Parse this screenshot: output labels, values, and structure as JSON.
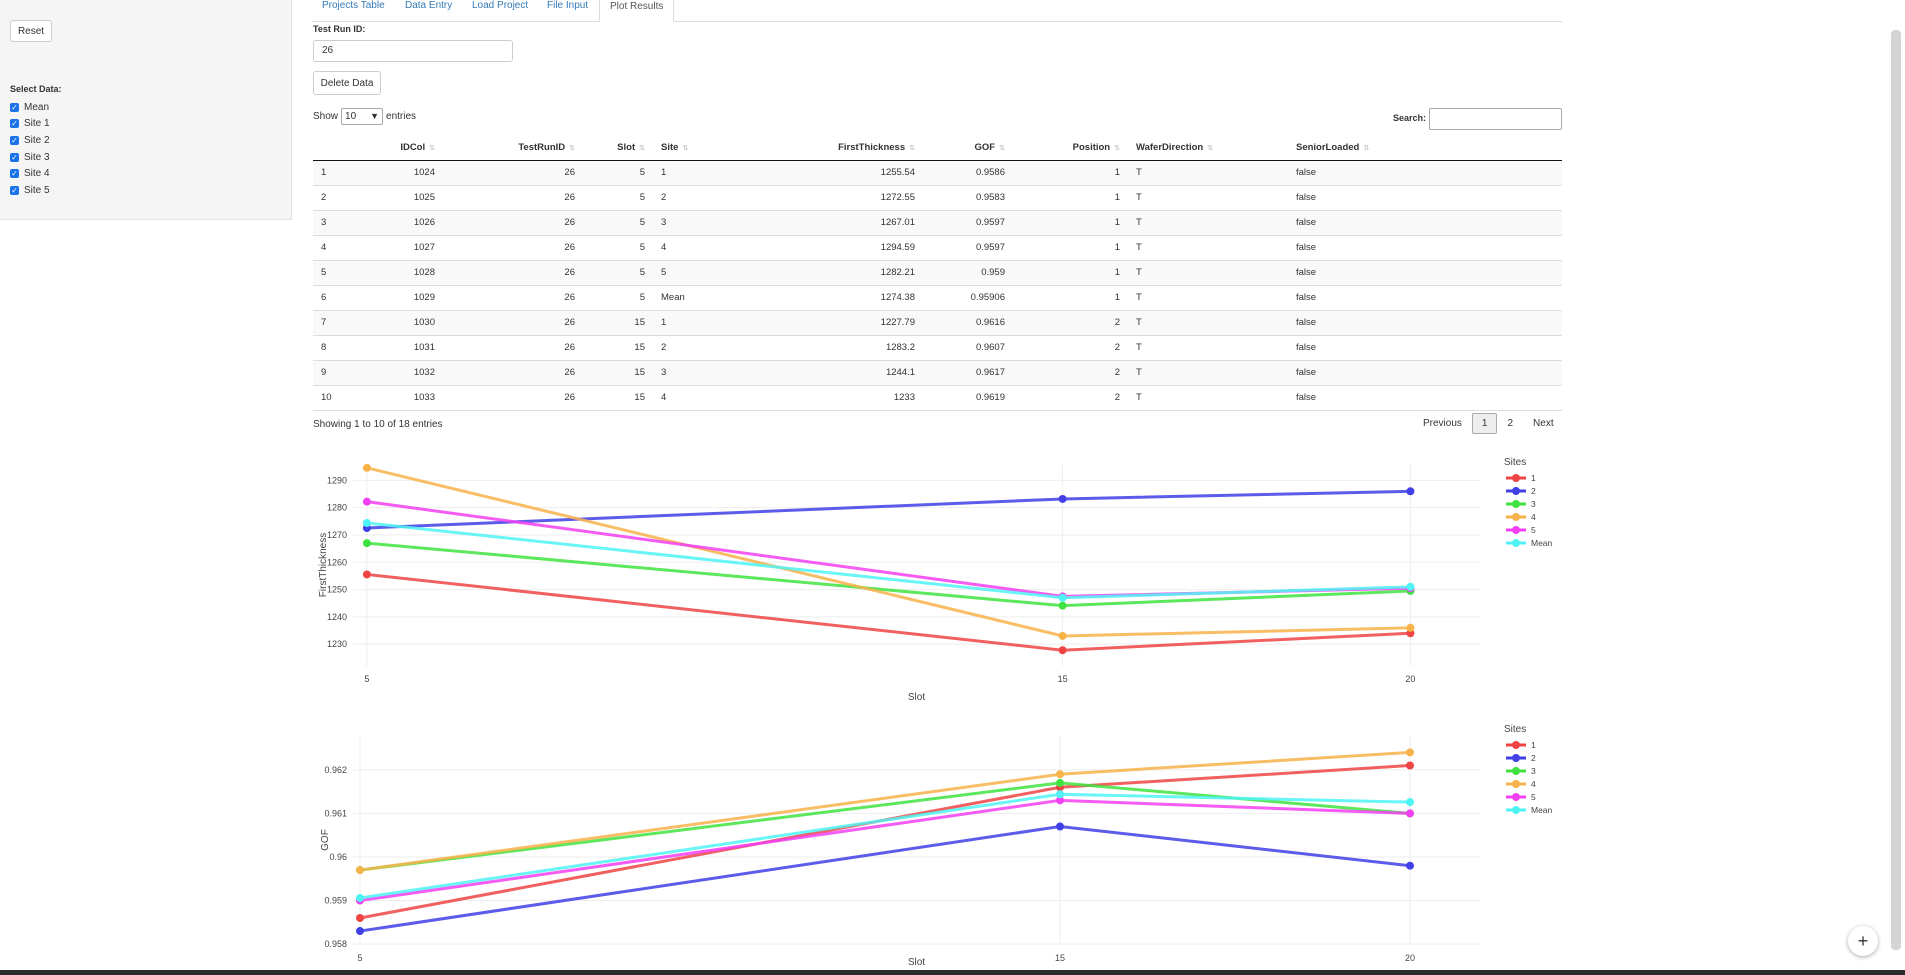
{
  "sidebar": {
    "reset_label": "Reset",
    "select_label": "Select Data:",
    "items": [
      {
        "label": "Mean",
        "checked": true
      },
      {
        "label": "Site 1",
        "checked": true
      },
      {
        "label": "Site 2",
        "checked": true
      },
      {
        "label": "Site 3",
        "checked": true
      },
      {
        "label": "Site 4",
        "checked": true
      },
      {
        "label": "Site 5",
        "checked": true
      }
    ]
  },
  "tabs": [
    {
      "label": "Projects Table",
      "active": false
    },
    {
      "label": "Data Entry",
      "active": false
    },
    {
      "label": "Load Project",
      "active": false
    },
    {
      "label": "File Input",
      "active": false
    },
    {
      "label": "Plot Results",
      "active": true
    }
  ],
  "form": {
    "test_run_label": "Test Run ID:",
    "test_run_value": "26",
    "delete_label": "Delete Data"
  },
  "table": {
    "show_label": "Show",
    "entries_value": "10",
    "entries_label": "entries",
    "search_label": "Search:",
    "columns": [
      "",
      "IDCol",
      "TestRunID",
      "Slot",
      "Site",
      "FirstThickness",
      "GOF",
      "Position",
      "WaferDirection",
      "SeniorLoaded"
    ],
    "rows": [
      [
        "1",
        "1024",
        "26",
        "5",
        "1",
        "1255.54",
        "0.9586",
        "1",
        "T",
        "false"
      ],
      [
        "2",
        "1025",
        "26",
        "5",
        "2",
        "1272.55",
        "0.9583",
        "1",
        "T",
        "false"
      ],
      [
        "3",
        "1026",
        "26",
        "5",
        "3",
        "1267.01",
        "0.9597",
        "1",
        "T",
        "false"
      ],
      [
        "4",
        "1027",
        "26",
        "5",
        "4",
        "1294.59",
        "0.9597",
        "1",
        "T",
        "false"
      ],
      [
        "5",
        "1028",
        "26",
        "5",
        "5",
        "1282.21",
        "0.959",
        "1",
        "T",
        "false"
      ],
      [
        "6",
        "1029",
        "26",
        "5",
        "Mean",
        "1274.38",
        "0.95906",
        "1",
        "T",
        "false"
      ],
      [
        "7",
        "1030",
        "26",
        "15",
        "1",
        "1227.79",
        "0.9616",
        "2",
        "T",
        "false"
      ],
      [
        "8",
        "1031",
        "26",
        "15",
        "2",
        "1283.2",
        "0.9607",
        "2",
        "T",
        "false"
      ],
      [
        "9",
        "1032",
        "26",
        "15",
        "3",
        "1244.1",
        "0.9617",
        "2",
        "T",
        "false"
      ],
      [
        "10",
        "1033",
        "26",
        "15",
        "4",
        "1233",
        "0.9619",
        "2",
        "T",
        "false"
      ]
    ],
    "info": "Showing 1 to 10 of 18 entries",
    "pagination": {
      "previous": "Previous",
      "pages": [
        "1",
        "2"
      ],
      "current": "1",
      "next": "Next"
    }
  },
  "chart_data": [
    {
      "type": "line",
      "xlabel": "Slot",
      "ylabel": "FirstThickness",
      "legend_title": "Sites",
      "legend_position": "right",
      "x_ticks": [
        5,
        15,
        20
      ],
      "y_ticks": [
        1230,
        1240,
        1250,
        1260,
        1270,
        1280,
        1290
      ],
      "xlim": [
        4.8,
        21.0
      ],
      "ylim": [
        1222,
        1296
      ],
      "series": [
        {
          "name": "1",
          "color": "#ef4444",
          "points": [
            [
              5,
              1255.54
            ],
            [
              15,
              1227.79
            ],
            [
              20,
              1234
            ]
          ]
        },
        {
          "name": "2",
          "color": "#4040e6",
          "points": [
            [
              5,
              1272.55
            ],
            [
              15,
              1283.2
            ],
            [
              20,
              1286
            ]
          ]
        },
        {
          "name": "3",
          "color": "#3fe33f",
          "points": [
            [
              5,
              1267.01
            ],
            [
              15,
              1244.1
            ],
            [
              20,
              1249.5
            ]
          ]
        },
        {
          "name": "4",
          "color": "#f7b24a",
          "points": [
            [
              5,
              1294.59
            ],
            [
              15,
              1233
            ],
            [
              20,
              1236
            ]
          ]
        },
        {
          "name": "5",
          "color": "#f23ff2",
          "points": [
            [
              5,
              1282.21
            ],
            [
              15,
              1247.5
            ],
            [
              20,
              1250.5
            ]
          ]
        },
        {
          "name": "Mean",
          "color": "#4ff3f3",
          "points": [
            [
              5,
              1274.38
            ],
            [
              15,
              1247
            ],
            [
              20,
              1251
            ]
          ]
        }
      ]
    },
    {
      "type": "line",
      "xlabel": "Slot",
      "ylabel": "GOF",
      "legend_title": "Sites",
      "legend_position": "right",
      "x_ticks": [
        5,
        15,
        20
      ],
      "y_ticks": [
        0.958,
        0.959,
        0.96,
        0.961,
        0.962
      ],
      "xlim": [
        4.9,
        21.0
      ],
      "ylim": [
        0.95798,
        0.9628
      ],
      "series": [
        {
          "name": "1",
          "color": "#ef4444",
          "points": [
            [
              5,
              0.9586
            ],
            [
              15,
              0.9616
            ],
            [
              20,
              0.9621
            ]
          ]
        },
        {
          "name": "2",
          "color": "#4040e6",
          "points": [
            [
              5,
              0.9583
            ],
            [
              15,
              0.9607
            ],
            [
              20,
              0.9598
            ]
          ]
        },
        {
          "name": "3",
          "color": "#3fe33f",
          "points": [
            [
              5,
              0.9597
            ],
            [
              15,
              0.9617
            ],
            [
              20,
              0.961
            ]
          ]
        },
        {
          "name": "4",
          "color": "#f7b24a",
          "points": [
            [
              5,
              0.9597
            ],
            [
              15,
              0.9619
            ],
            [
              20,
              0.9624
            ]
          ]
        },
        {
          "name": "5",
          "color": "#f23ff2",
          "points": [
            [
              5,
              0.959
            ],
            [
              15,
              0.9613
            ],
            [
              20,
              0.961
            ]
          ]
        },
        {
          "name": "Mean",
          "color": "#4ff3f3",
          "points": [
            [
              5,
              0.95906
            ],
            [
              15,
              0.96144
            ],
            [
              20,
              0.96126
            ]
          ]
        }
      ]
    }
  ],
  "fab_label": "+"
}
